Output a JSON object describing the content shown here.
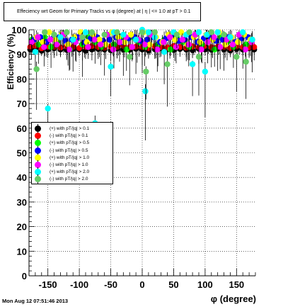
{
  "title": "Effeciency wrt Geom for Primary Tracks vs φ (degree) at | η | <= 1.0 at pT > 0.1",
  "timestamp": "Mon Aug 12 07:51:46 2013",
  "colors": {
    "black": "#000000",
    "red": "#ff0000",
    "green": "#00ff00",
    "blue": "#0000ff",
    "yellow": "#ffff00",
    "magenta": "#ff00ff",
    "cyan": "#00ffff",
    "lightgreen": "#66cc66"
  },
  "chart_data": {
    "type": "scatter",
    "title": "Effeciency wrt Geom for Primary Tracks vs φ (degree) at | η | <= 1.0 at pT > 0.1",
    "xlabel": "φ (degree)",
    "ylabel": "Efficiency (%)",
    "xlim": [
      -180,
      180
    ],
    "ylim": [
      0,
      100
    ],
    "x_ticks": [
      -150,
      -100,
      -50,
      0,
      50,
      100,
      150
    ],
    "y_ticks": [
      0,
      10,
      20,
      30,
      40,
      50,
      60,
      70,
      80,
      90,
      100
    ],
    "grid": true,
    "legend_position": "middle-left",
    "series": [
      {
        "name": "(+) with pT/|q| > 0.1",
        "color": "black",
        "approx_level": 92,
        "spread": 1.0,
        "x": [
          -178,
          -170,
          -160,
          -150,
          -140,
          -130,
          -120,
          -110,
          -100,
          -90,
          -80,
          -70,
          -60,
          -50,
          -40,
          -30,
          -20,
          -10,
          0,
          10,
          20,
          30,
          40,
          50,
          60,
          70,
          80,
          90,
          100,
          110,
          120,
          130,
          140,
          150,
          160,
          170,
          178
        ],
        "y": [
          92,
          92.5,
          91.5,
          92,
          92.5,
          92,
          91.8,
          92.3,
          92,
          91.5,
          92,
          92.2,
          92,
          91.7,
          92.4,
          92,
          91.9,
          92.3,
          92,
          91.6,
          92.1,
          92.5,
          92,
          91.8,
          92.2,
          92,
          91.7,
          92.3,
          92,
          91.9,
          92.4,
          92,
          91.6,
          92.2,
          92,
          92.5,
          92
        ]
      },
      {
        "name": "(-) with pT/|q| > 0.1",
        "color": "red",
        "approx_level": 93,
        "spread": 1.0,
        "x": [
          -178,
          -170,
          -160,
          -150,
          -140,
          -130,
          -120,
          -110,
          -100,
          -90,
          -80,
          -70,
          -60,
          -50,
          -40,
          -30,
          -20,
          -10,
          0,
          10,
          20,
          30,
          40,
          50,
          60,
          70,
          80,
          90,
          100,
          110,
          120,
          130,
          140,
          150,
          160,
          170,
          178
        ],
        "y": [
          93,
          93.5,
          92.5,
          93.2,
          93,
          92.8,
          93.3,
          93,
          92.6,
          93.1,
          93.4,
          93,
          92.7,
          93.2,
          93,
          93.5,
          92.9,
          93.1,
          93,
          92.6,
          93.3,
          93,
          92.8,
          93.4,
          93,
          92.7,
          93.2,
          93,
          93.5,
          92.9,
          93.1,
          93,
          92.6,
          93.3,
          93,
          92.8,
          93
        ]
      },
      {
        "name": "(+) with pT/|q| > 0.5",
        "color": "green",
        "approx_level": 95,
        "spread": 3,
        "x": [
          -175,
          -165,
          -155,
          -145,
          -135,
          -125,
          -115,
          -105,
          -95,
          -85,
          -75,
          -65,
          -55,
          -45,
          -35,
          -25,
          -15,
          -5,
          5,
          15,
          25,
          35,
          45,
          55,
          65,
          75,
          85,
          95,
          105,
          115,
          125,
          135,
          145,
          155,
          165,
          175
        ],
        "y": [
          96,
          94,
          97,
          93,
          95,
          98,
          92,
          96,
          94,
          97,
          95,
          93,
          98,
          94,
          96,
          92,
          97,
          95,
          93,
          98,
          94,
          96,
          92,
          97,
          95,
          93,
          98,
          94,
          96,
          92,
          97,
          95,
          93,
          98,
          94,
          96
        ]
      },
      {
        "name": "(-) with pT/|q| > 0.5",
        "color": "blue",
        "approx_level": 96,
        "spread": 2,
        "x": [
          -172,
          -162,
          -152,
          -142,
          -132,
          -122,
          -112,
          -102,
          -92,
          -82,
          -72,
          -62,
          -52,
          -42,
          -32,
          -22,
          -12,
          -2,
          8,
          18,
          28,
          38,
          48,
          58,
          68,
          78,
          88,
          98,
          108,
          118,
          128,
          138,
          148,
          158,
          168
        ],
        "y": [
          96,
          97,
          95,
          96.5,
          97,
          95.5,
          96,
          97,
          95,
          96.5,
          97,
          95.5,
          96,
          97,
          95,
          96.5,
          97,
          95.5,
          96,
          97,
          95,
          96.5,
          97,
          95.5,
          96,
          97,
          95,
          96.5,
          97,
          95.5,
          96,
          97,
          95,
          96.5,
          97
        ]
      },
      {
        "name": "(+) with pT/|q| > 1.0",
        "color": "yellow",
        "approx_level": 97,
        "spread": 3,
        "x": [
          -168,
          -158,
          -148,
          -138,
          -128,
          -118,
          -108,
          -98,
          -88,
          -78,
          -68,
          -58,
          -48,
          -38,
          -28,
          -18,
          -8,
          2,
          12,
          22,
          32,
          42,
          52,
          62,
          72,
          82,
          92,
          102,
          112,
          122,
          132,
          142,
          152,
          162,
          172
        ],
        "y": [
          97,
          95,
          99,
          96,
          98,
          94,
          97,
          99,
          95,
          98,
          96,
          94,
          99,
          97,
          95,
          98,
          96,
          99,
          94,
          97,
          95,
          98,
          96,
          99,
          94,
          97,
          95,
          98,
          96,
          99,
          94,
          97,
          95,
          98,
          96
        ]
      },
      {
        "name": "(-) with pT/|q| > 1.0",
        "color": "magenta",
        "approx_level": 95,
        "spread": 3,
        "x": [
          -176,
          -166,
          -156,
          -146,
          -136,
          -126,
          -116,
          -106,
          -96,
          -86,
          -76,
          -66,
          -56,
          -46,
          -36,
          -26,
          -16,
          -6,
          4,
          14,
          24,
          34,
          44,
          54,
          64,
          74,
          84,
          94,
          104,
          114,
          124,
          134,
          144,
          154,
          164,
          174
        ],
        "y": [
          95,
          97,
          93,
          96,
          94,
          98,
          92,
          95,
          97,
          93,
          96,
          94,
          98,
          92,
          95,
          97,
          93,
          96,
          94,
          98,
          92,
          95,
          97,
          93,
          96,
          94,
          98,
          92,
          95,
          97,
          93,
          96,
          94,
          98,
          92,
          95
        ]
      },
      {
        "name": "(+) with pT/|q| > 2.0",
        "color": "cyan",
        "approx_level": 96,
        "spread": 6,
        "x": [
          -170,
          -150,
          -130,
          -110,
          -90,
          -75,
          -50,
          -45,
          -30,
          -10,
          0,
          5,
          10,
          20,
          35,
          50,
          70,
          80,
          90,
          100,
          103,
          120,
          140,
          160,
          175
        ],
        "y": [
          91,
          68,
          97,
          96,
          99,
          62,
          85,
          99,
          98,
          96,
          100,
          75,
          99,
          97,
          91,
          99,
          98,
          86,
          99,
          83,
          98,
          99,
          97,
          99,
          96
        ]
      },
      {
        "name": "(-) with pT/|q| > 2.0",
        "color": "lightgreen",
        "approx_level": 94,
        "spread": 6,
        "x": [
          -168,
          -155,
          -140,
          -120,
          -95,
          -80,
          -60,
          -40,
          -20,
          0,
          6,
          20,
          40,
          55,
          75,
          90,
          110,
          130,
          150,
          165
        ],
        "y": [
          84,
          99,
          98,
          99,
          97,
          99,
          98,
          99,
          89,
          99,
          83,
          99,
          86,
          98,
          99,
          89,
          99,
          98,
          89,
          87
        ]
      }
    ]
  },
  "legend": {
    "entries": [
      {
        "label": "(+) with pT/|q| > 0.1",
        "color_key": "black"
      },
      {
        "label": "(-) with pT/|q| > 0.1",
        "color_key": "red"
      },
      {
        "label": "(+) with pT/|q| > 0.5",
        "color_key": "green"
      },
      {
        "label": "(-) with pT/|q| > 0.5",
        "color_key": "blue"
      },
      {
        "label": "(+) with pT/|q| > 1.0",
        "color_key": "yellow"
      },
      {
        "label": "(-) with pT/|q| > 1.0",
        "color_key": "magenta"
      },
      {
        "label": "(+) with pT/|q| > 2.0",
        "color_key": "cyan"
      },
      {
        "label": "(-) with pT/|q| > 2.0",
        "color_key": "lightgreen"
      }
    ]
  }
}
